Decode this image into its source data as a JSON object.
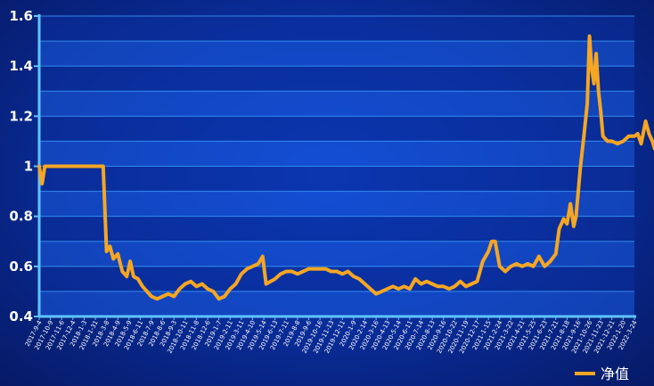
{
  "colors": {
    "background": "#0a2fa0",
    "plot_band_light": "#1a5be0",
    "plot_band_dark": "#0b2f9e",
    "grid": "#3aa0ff",
    "axis": "#5fc4ff",
    "series": "#f5a623",
    "text": "#ffffff"
  },
  "chart_data": {
    "type": "line",
    "title": "",
    "xlabel": "",
    "ylabel": "",
    "ylim": [
      0.4,
      1.6
    ],
    "y_ticks": [
      "0.4",
      "0.6",
      "0.8",
      "1",
      "1.2",
      "1.4",
      "1.6"
    ],
    "grid": true,
    "legend_position": "bottom-right",
    "x_tick_labels": [
      "2017-9-4",
      "2017-10-9",
      "2017-11-6",
      "2017-12-4",
      "2018-1-3",
      "2018-1-31",
      "2018-3-8",
      "2018-4-9",
      "2018-5-9",
      "2018-6-11",
      "2018-7-9",
      "2018-8-6",
      "2018-9-3",
      "2018-10-11",
      "2018-11-8",
      "2018-12-6",
      "2019-1-7",
      "2019-2-11",
      "2019-3-11",
      "2019-4-10",
      "2019-5-14",
      "2019-6-13",
      "2019-7-11",
      "2019-8-8",
      "2019-9-6",
      "2019-10-16",
      "2019-11-13",
      "2019-12-11",
      "2020-1-9",
      "2020-2-14",
      "2020-3-16",
      "2020-4-13",
      "2020-5-14",
      "2020-6-11",
      "2020-7-14",
      "2020-8-13",
      "2020-9-16",
      "2020-10-22",
      "2020-11-19",
      "2020-12-17",
      "2021-1-15",
      "2021-2-24",
      "2021-3-22",
      "2021-4-21",
      "2021-5-25",
      "2021-6-23",
      "2021-7-21",
      "2021-8-18",
      "2021-9-16",
      "2021-10-26",
      "2021-11-23",
      "2021-12-21",
      "2022-1-20",
      "2022-3-24"
    ],
    "series": [
      {
        "name": "净值",
        "color": "#f5a623",
        "values": [
          [
            0,
            1.0
          ],
          [
            0.25,
            0.93
          ],
          [
            0.5,
            1.0
          ],
          [
            1,
            1.0
          ],
          [
            3,
            1.0
          ],
          [
            5,
            1.0
          ],
          [
            5.7,
            1.0
          ],
          [
            6.0,
            0.66
          ],
          [
            6.3,
            0.68
          ],
          [
            6.6,
            0.63
          ],
          [
            7.0,
            0.65
          ],
          [
            7.4,
            0.58
          ],
          [
            7.8,
            0.56
          ],
          [
            8.1,
            0.62
          ],
          [
            8.4,
            0.56
          ],
          [
            8.8,
            0.55
          ],
          [
            9.2,
            0.52
          ],
          [
            9.6,
            0.5
          ],
          [
            10.0,
            0.48
          ],
          [
            10.5,
            0.47
          ],
          [
            11.0,
            0.48
          ],
          [
            11.5,
            0.49
          ],
          [
            12.0,
            0.48
          ],
          [
            12.5,
            0.51
          ],
          [
            13.0,
            0.53
          ],
          [
            13.5,
            0.54
          ],
          [
            14.0,
            0.52
          ],
          [
            14.5,
            0.53
          ],
          [
            15.0,
            0.51
          ],
          [
            15.5,
            0.5
          ],
          [
            16.0,
            0.47
          ],
          [
            16.5,
            0.48
          ],
          [
            17.0,
            0.51
          ],
          [
            17.5,
            0.53
          ],
          [
            18.0,
            0.57
          ],
          [
            18.5,
            0.59
          ],
          [
            19.0,
            0.6
          ],
          [
            19.5,
            0.61
          ],
          [
            19.9,
            0.64
          ],
          [
            20.2,
            0.53
          ],
          [
            20.6,
            0.54
          ],
          [
            21.0,
            0.55
          ],
          [
            21.5,
            0.57
          ],
          [
            22.0,
            0.58
          ],
          [
            22.5,
            0.58
          ],
          [
            23.0,
            0.57
          ],
          [
            23.5,
            0.58
          ],
          [
            24.0,
            0.59
          ],
          [
            24.5,
            0.59
          ],
          [
            25.0,
            0.59
          ],
          [
            25.5,
            0.59
          ],
          [
            26.0,
            0.58
          ],
          [
            26.5,
            0.58
          ],
          [
            27.0,
            0.57
          ],
          [
            27.5,
            0.58
          ],
          [
            28.0,
            0.56
          ],
          [
            28.5,
            0.55
          ],
          [
            29.0,
            0.53
          ],
          [
            29.5,
            0.51
          ],
          [
            30.0,
            0.49
          ],
          [
            30.5,
            0.5
          ],
          [
            31.0,
            0.51
          ],
          [
            31.5,
            0.52
          ],
          [
            32.0,
            0.51
          ],
          [
            32.5,
            0.52
          ],
          [
            33.0,
            0.51
          ],
          [
            33.5,
            0.55
          ],
          [
            34.0,
            0.53
          ],
          [
            34.5,
            0.54
          ],
          [
            35.0,
            0.53
          ],
          [
            35.5,
            0.52
          ],
          [
            36.0,
            0.52
          ],
          [
            36.5,
            0.51
          ],
          [
            37.0,
            0.52
          ],
          [
            37.5,
            0.54
          ],
          [
            38.0,
            0.52
          ],
          [
            38.5,
            0.53
          ],
          [
            39.0,
            0.54
          ],
          [
            39.5,
            0.62
          ],
          [
            40.0,
            0.66
          ],
          [
            40.3,
            0.7
          ],
          [
            40.6,
            0.7
          ],
          [
            41.0,
            0.6
          ],
          [
            41.5,
            0.58
          ],
          [
            42.0,
            0.6
          ],
          [
            42.5,
            0.61
          ],
          [
            43.0,
            0.6
          ],
          [
            43.5,
            0.61
          ],
          [
            44.0,
            0.6
          ],
          [
            44.5,
            0.64
          ],
          [
            45.0,
            0.6
          ],
          [
            45.5,
            0.62
          ],
          [
            46.0,
            0.65
          ],
          [
            46.3,
            0.75
          ],
          [
            46.7,
            0.79
          ],
          [
            47.0,
            0.77
          ],
          [
            47.3,
            0.85
          ],
          [
            47.6,
            0.76
          ],
          [
            47.8,
            0.8
          ],
          [
            48.2,
            1.0
          ],
          [
            48.5,
            1.12
          ],
          [
            48.8,
            1.25
          ],
          [
            49.0,
            1.52
          ],
          [
            49.2,
            1.39
          ],
          [
            49.4,
            1.33
          ],
          [
            49.6,
            1.45
          ],
          [
            49.8,
            1.3
          ],
          [
            50.0,
            1.22
          ],
          [
            50.2,
            1.12
          ],
          [
            50.6,
            1.1
          ],
          [
            51.0,
            1.1
          ],
          [
            51.5,
            1.09
          ],
          [
            52.0,
            1.1
          ],
          [
            52.5,
            1.12
          ],
          [
            53.0,
            1.12
          ],
          [
            53.3,
            1.13
          ],
          [
            53.6,
            1.09
          ],
          [
            54.0,
            1.18
          ],
          [
            54.3,
            1.13
          ],
          [
            54.6,
            1.1
          ],
          [
            54.8,
            1.07
          ],
          [
            55.0,
            1.06
          ]
        ]
      }
    ]
  }
}
